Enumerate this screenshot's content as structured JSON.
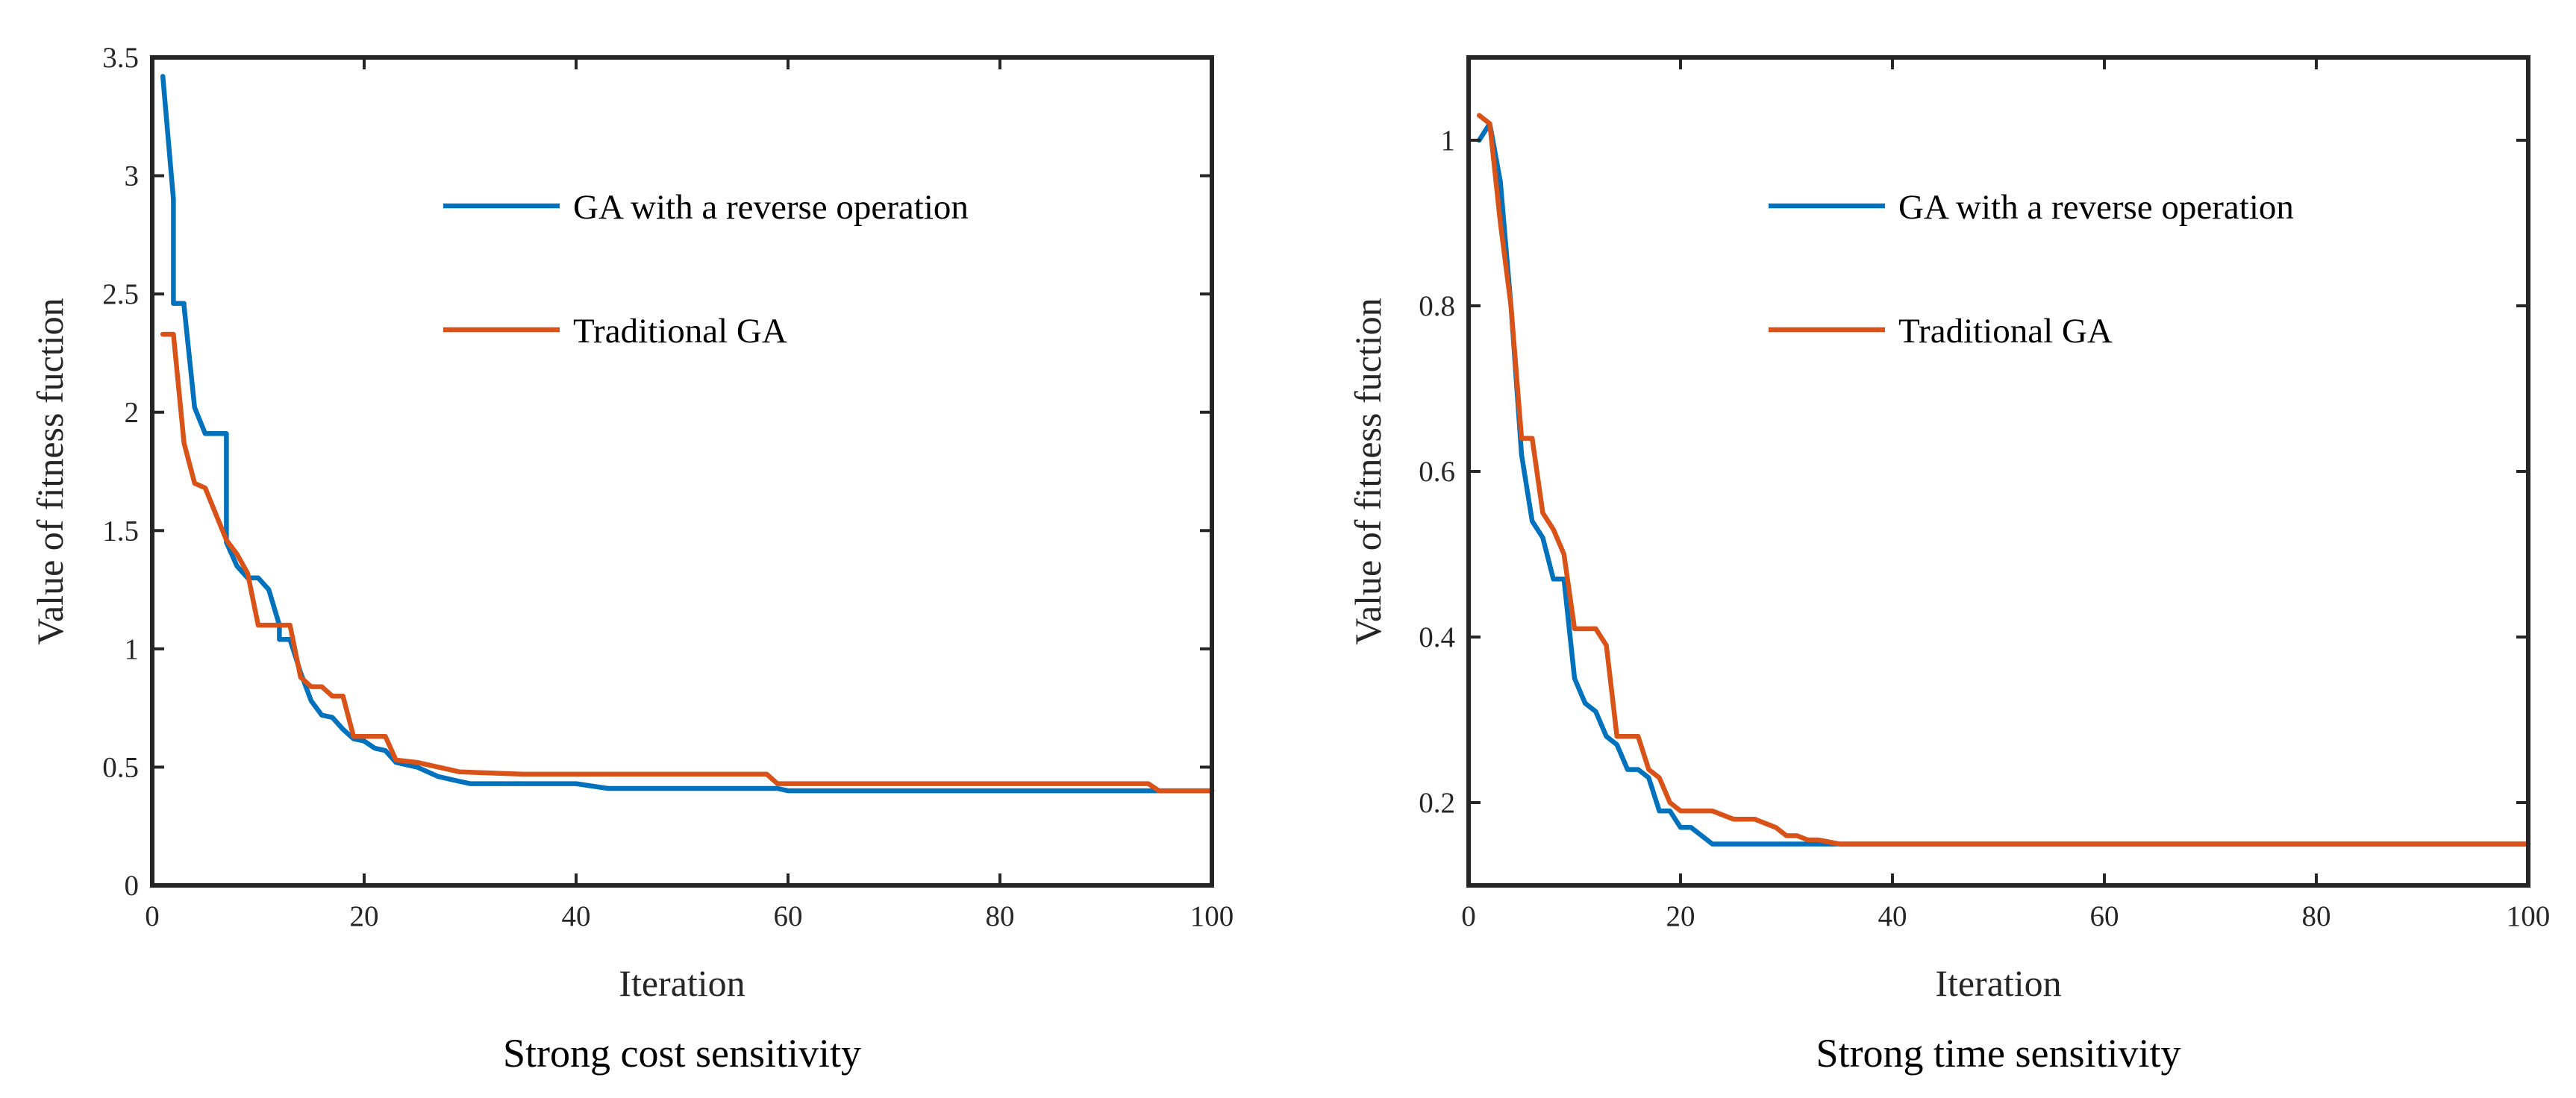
{
  "chart_data": [
    {
      "type": "line",
      "caption": "Strong cost sensitivity",
      "xlabel": "Iteration",
      "ylabel": "Value of fitness fuction",
      "xlim": [
        0,
        100
      ],
      "ylim": [
        0,
        3.5
      ],
      "xticks": [
        0,
        20,
        40,
        60,
        80,
        100
      ],
      "xtick_labels": [
        "0",
        "20",
        "40",
        "60",
        "80",
        "100"
      ],
      "yticks": [
        0,
        0.5,
        1,
        1.5,
        2,
        2.5,
        3,
        3.5
      ],
      "ytick_labels": [
        "0",
        "0.5",
        "1",
        "1.5",
        "2",
        "2.5",
        "3",
        "3.5"
      ],
      "grid": false,
      "legend_position": "upper-right",
      "series": [
        {
          "name": "GA with a reverse operation",
          "color": "#0072BD",
          "x": [
            1,
            2,
            2,
            3,
            3,
            4,
            5,
            7,
            7,
            8,
            9,
            10,
            11,
            12,
            12,
            13,
            14,
            15,
            16,
            17,
            18,
            19,
            20,
            21,
            22,
            23,
            24,
            25,
            26,
            27,
            28,
            29,
            30,
            35,
            40,
            43,
            50,
            59,
            60,
            70,
            80,
            90,
            94,
            95,
            100
          ],
          "y": [
            3.42,
            2.9,
            2.46,
            2.46,
            2.45,
            2.02,
            1.91,
            1.91,
            1.45,
            1.35,
            1.3,
            1.3,
            1.25,
            1.1,
            1.04,
            1.04,
            0.9,
            0.78,
            0.72,
            0.71,
            0.66,
            0.62,
            0.61,
            0.58,
            0.57,
            0.52,
            0.51,
            0.5,
            0.48,
            0.46,
            0.45,
            0.44,
            0.43,
            0.43,
            0.43,
            0.41,
            0.41,
            0.41,
            0.4,
            0.4,
            0.4,
            0.4,
            0.4,
            0.4,
            0.4
          ]
        },
        {
          "name": "Traditional GA",
          "color": "#D95319",
          "x": [
            1,
            2,
            3,
            4,
            5,
            6,
            7,
            8,
            9,
            10,
            11,
            12,
            13,
            14,
            15,
            16,
            17,
            18,
            19,
            20,
            21,
            22,
            23,
            25,
            27,
            28,
            29,
            35,
            40,
            50,
            58,
            59,
            60,
            70,
            80,
            90,
            94,
            95,
            100
          ],
          "y": [
            2.33,
            2.33,
            1.87,
            1.7,
            1.68,
            1.57,
            1.46,
            1.4,
            1.32,
            1.1,
            1.1,
            1.1,
            1.1,
            0.88,
            0.84,
            0.84,
            0.8,
            0.8,
            0.63,
            0.63,
            0.63,
            0.63,
            0.53,
            0.52,
            0.5,
            0.49,
            0.48,
            0.47,
            0.47,
            0.47,
            0.47,
            0.43,
            0.43,
            0.43,
            0.43,
            0.43,
            0.43,
            0.4,
            0.4
          ]
        }
      ]
    },
    {
      "type": "line",
      "caption": "Strong time sensitivity",
      "xlabel": "Iteration",
      "ylabel": "Value of fitness fuction",
      "xlim": [
        0,
        100
      ],
      "ylim": [
        0.1,
        1.1
      ],
      "xticks": [
        0,
        20,
        40,
        60,
        80,
        100
      ],
      "xtick_labels": [
        "0",
        "20",
        "40",
        "60",
        "80",
        "100"
      ],
      "yticks": [
        0.2,
        0.4,
        0.6,
        0.8,
        1
      ],
      "ytick_labels": [
        "0.2",
        "0.4",
        "0.6",
        "0.8",
        "1"
      ],
      "grid": false,
      "legend_position": "upper-right",
      "series": [
        {
          "name": "GA with a reverse operation",
          "color": "#0072BD",
          "x": [
            1,
            2,
            3,
            4,
            5,
            6,
            7,
            8,
            9,
            10,
            11,
            12,
            13,
            14,
            15,
            16,
            17,
            18,
            19,
            20,
            21,
            22,
            23,
            25,
            28,
            30,
            31,
            35,
            40,
            60,
            80,
            100
          ],
          "y": [
            1.0,
            1.02,
            0.95,
            0.8,
            0.62,
            0.54,
            0.52,
            0.47,
            0.47,
            0.35,
            0.32,
            0.31,
            0.28,
            0.27,
            0.24,
            0.24,
            0.23,
            0.19,
            0.19,
            0.17,
            0.17,
            0.16,
            0.15,
            0.15,
            0.15,
            0.15,
            0.15,
            0.15,
            0.15,
            0.15,
            0.15,
            0.15
          ]
        },
        {
          "name": "Traditional GA",
          "color": "#D95319",
          "x": [
            1,
            2,
            3,
            4,
            5,
            6,
            7,
            8,
            9,
            10,
            11,
            12,
            13,
            14,
            15,
            16,
            17,
            18,
            19,
            20,
            21,
            22,
            23,
            24,
            25,
            26,
            27,
            28,
            29,
            30,
            31,
            32,
            33,
            35,
            40,
            60,
            80,
            100
          ],
          "y": [
            1.03,
            1.02,
            0.9,
            0.8,
            0.64,
            0.64,
            0.55,
            0.53,
            0.5,
            0.41,
            0.41,
            0.41,
            0.39,
            0.28,
            0.28,
            0.28,
            0.24,
            0.23,
            0.2,
            0.19,
            0.19,
            0.19,
            0.19,
            0.185,
            0.18,
            0.18,
            0.18,
            0.175,
            0.17,
            0.16,
            0.16,
            0.155,
            0.155,
            0.15,
            0.15,
            0.15,
            0.15,
            0.15
          ]
        }
      ]
    }
  ]
}
